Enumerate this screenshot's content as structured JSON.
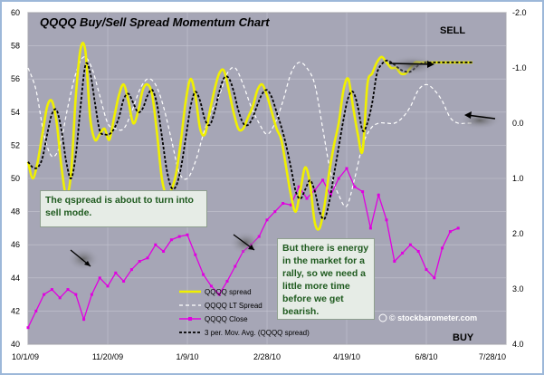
{
  "chart_data": {
    "type": "line",
    "title": "QQQQ Buy/Sell Spread Momentum Chart",
    "x_ticks": [
      "10/1/09",
      "11/20/09",
      "1/9/10",
      "2/28/10",
      "4/19/10",
      "6/8/10",
      "7/28/10"
    ],
    "y_left": {
      "ticks": [
        "40",
        "42",
        "44",
        "46",
        "48",
        "50",
        "52",
        "54",
        "56",
        "58",
        "60"
      ],
      "min": 40,
      "max": 60
    },
    "y_right": {
      "ticks": [
        "-2.0",
        "-1.0",
        "0.0",
        "1.0",
        "2.0",
        "3.0",
        "4.0"
      ],
      "min": -2.0,
      "max": 4.0,
      "inverted": true
    },
    "corner_labels": {
      "top": "SELL",
      "bottom": "BUY"
    },
    "legend": [
      {
        "label": "QQQQ spread",
        "color": "#f0f000",
        "style": "solid"
      },
      {
        "label": "QQQQ LT Spread",
        "color": "#ffffff",
        "style": "dashed"
      },
      {
        "label": "QQQQ Close",
        "color": "#e000e0",
        "style": "solid-markers"
      },
      {
        "label": "3 per. Mov. Avg. (QQQQ spread)",
        "color": "#000000",
        "style": "dashed"
      }
    ],
    "grid": true,
    "legend_position": "bottom-center",
    "series": [
      {
        "name": "QQQQ spread",
        "axis": "right",
        "x": [
          0,
          3,
          6,
          9,
          12,
          15,
          18,
          21,
          24,
          27,
          30,
          33,
          36,
          39,
          42,
          45,
          48,
          51,
          54,
          57,
          60,
          63,
          66,
          69,
          72,
          75,
          78,
          81,
          84,
          87,
          90,
          93,
          96,
          99,
          102,
          105,
          108,
          111,
          114,
          117,
          120,
          123,
          126,
          129,
          132,
          135,
          138,
          141,
          144,
          147,
          150,
          153,
          156,
          159,
          162,
          165,
          168,
          171,
          174,
          177,
          180,
          183,
          186,
          189,
          192,
          195,
          198,
          201,
          204,
          207,
          210,
          213,
          216,
          219,
          222,
          225,
          228,
          231,
          234,
          237,
          240,
          243,
          246,
          249,
          252,
          255,
          258,
          261,
          264,
          267,
          270,
          273,
          276,
          279
        ],
        "y": [
          0.7,
          1.0,
          0.7,
          0.2,
          -0.3,
          -0.4,
          0.0,
          0.8,
          1.3,
          0.9,
          -0.5,
          -1.35,
          -1.3,
          -0.1,
          0.3,
          0.2,
          0.1,
          0.3,
          -0.1,
          -0.5,
          -0.7,
          -0.4,
          0.0,
          -0.2,
          -0.6,
          -0.7,
          -0.5,
          0.2,
          1.0,
          1.3,
          1.2,
          0.9,
          0.3,
          -0.4,
          -0.8,
          -0.5,
          0.1,
          0.2,
          -0.2,
          -0.6,
          -0.9,
          -0.95,
          -0.6,
          -0.2,
          0.1,
          0.1,
          -0.1,
          -0.3,
          -0.6,
          -0.7,
          -0.5,
          -0.2,
          0.1,
          0.3,
          0.8,
          1.3,
          1.6,
          1.2,
          0.8,
          1.1,
          1.8,
          1.9,
          1.5,
          0.9,
          0.4,
          0.0,
          -0.6,
          -0.8,
          -0.3,
          0.2,
          0.5,
          -0.7,
          -0.9,
          -1.1,
          -1.2,
          -1.1,
          -1.0,
          -1.0,
          -0.9,
          -0.9,
          -1.0,
          -1.1,
          -1.1,
          -1.1,
          -1.1,
          -1.1,
          -1.1,
          -1.1,
          -1.1,
          -1.1,
          -1.1,
          -1.1,
          -1.1,
          -1.1
        ]
      },
      {
        "name": "QQQQ LT Spread",
        "axis": "right",
        "x": [
          0,
          5,
          10,
          15,
          20,
          25,
          30,
          35,
          40,
          45,
          50,
          55,
          60,
          65,
          70,
          75,
          80,
          85,
          90,
          95,
          100,
          105,
          110,
          115,
          120,
          125,
          130,
          135,
          140,
          145,
          150,
          155,
          160,
          165,
          170,
          175,
          180,
          185,
          190,
          195,
          200,
          205,
          210,
          215,
          220,
          225,
          230,
          235,
          240,
          245,
          250,
          255,
          260,
          265,
          270,
          275,
          280
        ],
        "y": [
          -1.0,
          -0.6,
          0.2,
          0.6,
          0.4,
          -0.3,
          -0.9,
          -1.2,
          -1.0,
          -0.5,
          0.0,
          0.1,
          0.1,
          -0.2,
          -0.6,
          -0.8,
          -0.7,
          -0.3,
          0.3,
          0.9,
          1.0,
          0.7,
          0.2,
          -0.2,
          -0.5,
          -0.9,
          -1.0,
          -0.7,
          -0.3,
          0.0,
          0.2,
          0.0,
          -0.4,
          -0.9,
          -1.1,
          -1.0,
          -0.7,
          0.1,
          0.9,
          1.3,
          1.5,
          1.0,
          0.4,
          0.1,
          0.0,
          0.0,
          0.0,
          -0.1,
          -0.3,
          -0.6,
          -0.7,
          -0.6,
          -0.4,
          -0.1,
          0.0,
          0.0,
          0.0
        ]
      },
      {
        "name": "QQQQ Close",
        "axis": "left",
        "x": [
          0,
          5,
          10,
          15,
          20,
          25,
          30,
          35,
          40,
          45,
          50,
          55,
          60,
          65,
          70,
          75,
          80,
          85,
          90,
          95,
          100,
          105,
          110,
          115,
          120,
          125,
          130,
          135,
          140,
          145,
          150,
          155,
          160,
          165,
          170,
          175,
          180,
          185,
          190,
          195,
          200,
          205,
          210,
          215,
          220,
          225,
          230,
          235,
          240,
          245,
          250,
          255,
          260,
          265,
          270
        ],
        "y": [
          41.0,
          42.0,
          43.0,
          43.3,
          42.8,
          43.3,
          43.0,
          41.5,
          43.0,
          44.0,
          43.5,
          44.3,
          43.8,
          44.5,
          45.0,
          45.2,
          46.0,
          45.6,
          46.3,
          46.5,
          46.6,
          45.4,
          44.2,
          43.5,
          43.0,
          43.8,
          44.7,
          45.6,
          46.0,
          46.5,
          47.5,
          48.0,
          48.5,
          48.4,
          49.5,
          48.8,
          49.3,
          49.9,
          49.0,
          50.0,
          50.6,
          49.5,
          49.2,
          47.0,
          49.0,
          47.5,
          45.0,
          45.5,
          46.0,
          45.6,
          44.5,
          44.0,
          45.8,
          46.8,
          47.0
        ]
      }
    ]
  },
  "annotations": {
    "note1": "The qspread is about to turn into sell mode.",
    "note2": "But there is energy in the market for a rally, so we need a little more time before we get bearish."
  },
  "credit": "© stockbarometer.com"
}
